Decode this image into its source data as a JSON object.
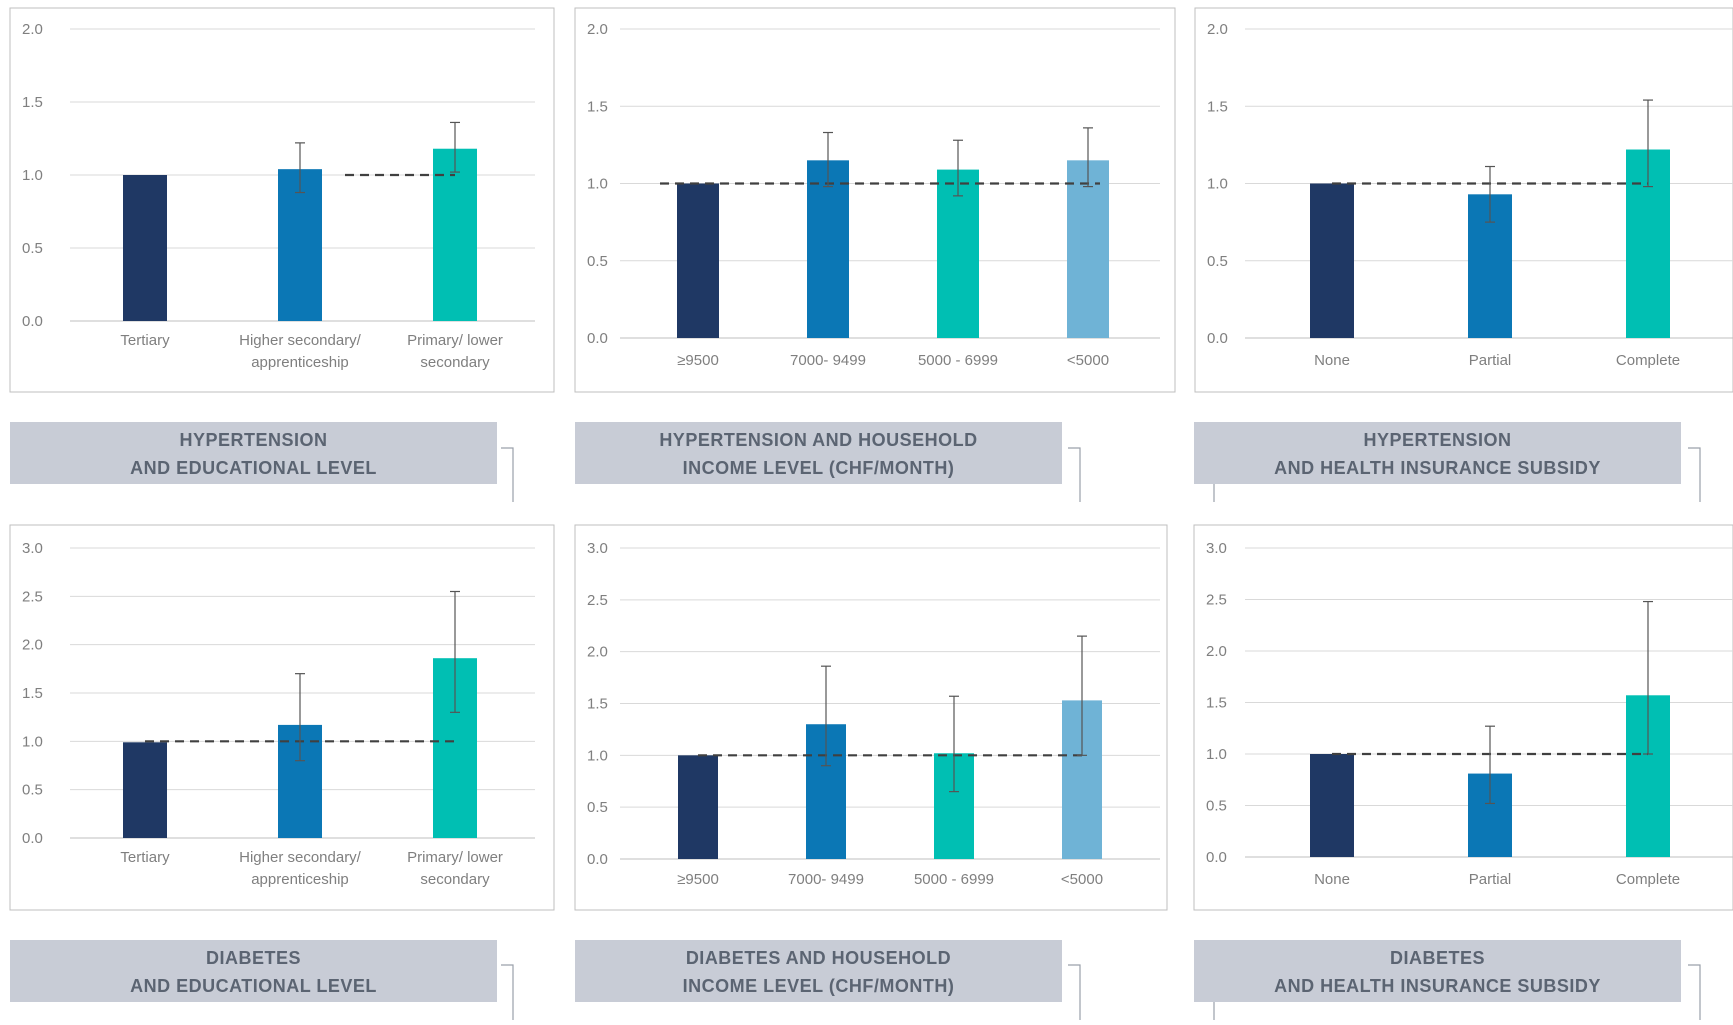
{
  "colors": {
    "bar_palette": [
      "#1f3864",
      "#0b77b5",
      "#00bfb3",
      "#6fb3d6"
    ],
    "banner": "#c8ccd6",
    "banner_text": "#5b6472",
    "reference_line": "#404040"
  },
  "chart_data": [
    {
      "type": "bar",
      "title_lines": [
        "HYPERTENSION",
        "AND EDUCATIONAL LEVEL"
      ],
      "categories": [
        [
          "Tertiary"
        ],
        [
          "Higher secondary/",
          "apprenticeship"
        ],
        [
          "Primary/ lower",
          "secondary"
        ]
      ],
      "values": [
        1.0,
        1.04,
        1.18
      ],
      "errors": [
        [
          1.0,
          1.0
        ],
        [
          0.88,
          1.22
        ],
        [
          1.02,
          1.36
        ]
      ],
      "reference_value": 1.0,
      "ylim": [
        0,
        2.0
      ],
      "yticks": [
        "0.0",
        "0.5",
        "1.0",
        "1.5",
        "2.0"
      ],
      "grid": true
    },
    {
      "type": "bar",
      "title_lines": [
        "HYPERTENSION AND HOUSEHOLD",
        "INCOME LEVEL (CHF/MONTH)"
      ],
      "categories": [
        [
          "≥9500"
        ],
        [
          "7000- 9499"
        ],
        [
          "5000 - 6999"
        ],
        [
          "<5000"
        ]
      ],
      "values": [
        1.0,
        1.15,
        1.09,
        1.15
      ],
      "errors": [
        [
          1.0,
          1.0
        ],
        [
          0.98,
          1.33
        ],
        [
          0.92,
          1.28
        ],
        [
          0.98,
          1.36
        ]
      ],
      "reference_value": 1.0,
      "ylim": [
        0,
        2.0
      ],
      "yticks": [
        "0.0",
        "0.5",
        "1.0",
        "1.5",
        "2.0"
      ],
      "grid": true
    },
    {
      "type": "bar",
      "title_lines": [
        "HYPERTENSION",
        "AND HEALTH INSURANCE SUBSIDY"
      ],
      "categories": [
        [
          "None"
        ],
        [
          "Partial"
        ],
        [
          "Complete"
        ]
      ],
      "values": [
        1.0,
        0.93,
        1.22
      ],
      "errors": [
        [
          1.0,
          1.0
        ],
        [
          0.75,
          1.11
        ],
        [
          0.98,
          1.54
        ]
      ],
      "reference_value": 1.0,
      "ylim": [
        0,
        2.0
      ],
      "yticks": [
        "0.0",
        "0.5",
        "1.0",
        "1.5",
        "2.0"
      ],
      "grid": true
    },
    {
      "type": "bar",
      "title_lines": [
        "DIABETES",
        "AND EDUCATIONAL LEVEL"
      ],
      "categories": [
        [
          "Tertiary"
        ],
        [
          "Higher secondary/",
          "apprenticeship"
        ],
        [
          "Primary/ lower",
          "secondary"
        ]
      ],
      "values": [
        0.99,
        1.17,
        1.86
      ],
      "errors": [
        [
          0.99,
          0.99
        ],
        [
          0.8,
          1.7
        ],
        [
          1.3,
          2.55
        ]
      ],
      "reference_value": 1.0,
      "ylim": [
        0,
        3.0
      ],
      "yticks": [
        "0.0",
        "0.5",
        "1.0",
        "1.5",
        "2.0",
        "2.5",
        "3.0"
      ],
      "grid": true
    },
    {
      "type": "bar",
      "title_lines": [
        "DIABETES AND HOUSEHOLD",
        "INCOME LEVEL (CHF/MONTH)"
      ],
      "categories": [
        [
          "≥9500"
        ],
        [
          "7000- 9499"
        ],
        [
          "5000 - 6999"
        ],
        [
          "<5000"
        ]
      ],
      "values": [
        1.0,
        1.3,
        1.02,
        1.53
      ],
      "errors": [
        [
          1.0,
          1.0
        ],
        [
          0.9,
          1.86
        ],
        [
          0.65,
          1.57
        ],
        [
          1.0,
          2.15
        ]
      ],
      "reference_value": 1.0,
      "ylim": [
        0,
        3.0
      ],
      "yticks": [
        "0.0",
        "0.5",
        "1.0",
        "1.5",
        "2.0",
        "2.5",
        "3.0"
      ],
      "grid": true
    },
    {
      "type": "bar",
      "title_lines": [
        "DIABETES",
        "AND HEALTH INSURANCE SUBSIDY"
      ],
      "categories": [
        [
          "None"
        ],
        [
          "Partial"
        ],
        [
          "Complete"
        ]
      ],
      "values": [
        1.0,
        0.81,
        1.57
      ],
      "errors": [
        [
          1.0,
          1.0
        ],
        [
          0.52,
          1.27
        ],
        [
          1.0,
          2.48
        ]
      ],
      "reference_value": 1.0,
      "ylim": [
        0,
        3.0
      ],
      "yticks": [
        "0.0",
        "0.5",
        "1.0",
        "1.5",
        "2.0",
        "2.5",
        "3.0"
      ],
      "grid": true
    }
  ]
}
